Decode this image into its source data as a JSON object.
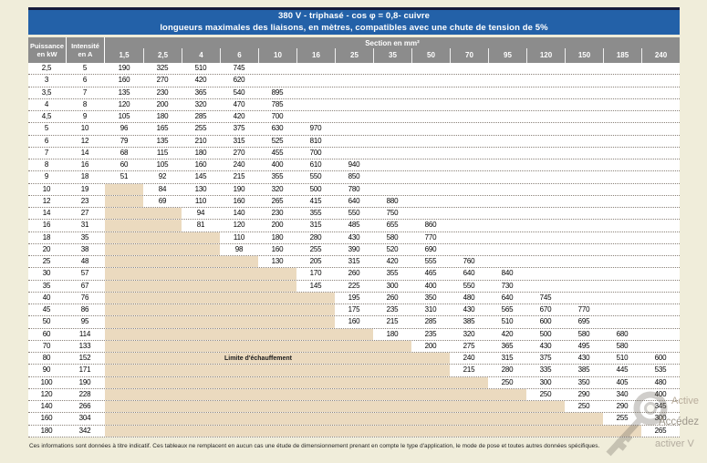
{
  "title": {
    "line1": "380 V - triphasé - cos φ  = 0,8- cuivre",
    "line2": "longueurs maximales des liaisons, en mètres, compatibles avec une chute de tension de 5%"
  },
  "header": {
    "power_line1": "Puissance",
    "power_line2": "en kW",
    "current_line1": "Intensité",
    "current_line2": "en A",
    "section_label": "Section en mm²"
  },
  "chart_data": {
    "type": "table",
    "title": "380 V - triphasé - cos φ = 0,8 - cuivre : longueurs maximales des liaisons (m) pour une chute de tension de 5%",
    "columns": [
      "1,5",
      "2,5",
      "4",
      "6",
      "10",
      "16",
      "25",
      "35",
      "50",
      "70",
      "95",
      "120",
      "150",
      "185",
      "240"
    ],
    "rows": [
      {
        "kw": "2,5",
        "a": "5",
        "beige": 0,
        "values": [
          "190",
          "325",
          "510",
          "745"
        ]
      },
      {
        "kw": "3",
        "a": "6",
        "beige": 0,
        "values": [
          "160",
          "270",
          "420",
          "620"
        ]
      },
      {
        "kw": "3,5",
        "a": "7",
        "beige": 0,
        "values": [
          "135",
          "230",
          "365",
          "540",
          "895"
        ]
      },
      {
        "kw": "4",
        "a": "8",
        "beige": 0,
        "values": [
          "120",
          "200",
          "320",
          "470",
          "785"
        ]
      },
      {
        "kw": "4,5",
        "a": "9",
        "beige": 0,
        "values": [
          "105",
          "180",
          "285",
          "420",
          "700"
        ]
      },
      {
        "kw": "5",
        "a": "10",
        "beige": 0,
        "values": [
          "96",
          "165",
          "255",
          "375",
          "630",
          "970"
        ]
      },
      {
        "kw": "6",
        "a": "12",
        "beige": 0,
        "values": [
          "79",
          "135",
          "210",
          "315",
          "525",
          "810"
        ]
      },
      {
        "kw": "7",
        "a": "14",
        "beige": 0,
        "values": [
          "68",
          "115",
          "180",
          "270",
          "455",
          "700"
        ]
      },
      {
        "kw": "8",
        "a": "16",
        "beige": 0,
        "values": [
          "60",
          "105",
          "160",
          "240",
          "400",
          "610",
          "940"
        ]
      },
      {
        "kw": "9",
        "a": "18",
        "beige": 0,
        "values": [
          "51",
          "92",
          "145",
          "215",
          "355",
          "550",
          "850"
        ]
      },
      {
        "kw": "10",
        "a": "19",
        "beige": 1,
        "values": [
          "84",
          "130",
          "190",
          "320",
          "500",
          "780"
        ]
      },
      {
        "kw": "12",
        "a": "23",
        "beige": 1,
        "values": [
          "69",
          "110",
          "160",
          "265",
          "415",
          "640",
          "880"
        ]
      },
      {
        "kw": "14",
        "a": "27",
        "beige": 2,
        "values": [
          "94",
          "140",
          "230",
          "355",
          "550",
          "750"
        ]
      },
      {
        "kw": "16",
        "a": "31",
        "beige": 2,
        "values": [
          "81",
          "120",
          "200",
          "315",
          "485",
          "655",
          "860"
        ]
      },
      {
        "kw": "18",
        "a": "35",
        "beige": 3,
        "values": [
          "110",
          "180",
          "280",
          "430",
          "580",
          "770"
        ]
      },
      {
        "kw": "20",
        "a": "38",
        "beige": 3,
        "values": [
          "98",
          "160",
          "255",
          "390",
          "520",
          "690"
        ]
      },
      {
        "kw": "25",
        "a": "48",
        "beige": 4,
        "values": [
          "130",
          "205",
          "315",
          "420",
          "555",
          "760"
        ]
      },
      {
        "kw": "30",
        "a": "57",
        "beige": 5,
        "values": [
          "170",
          "260",
          "355",
          "465",
          "640",
          "840"
        ]
      },
      {
        "kw": "35",
        "a": "67",
        "beige": 5,
        "values": [
          "145",
          "225",
          "300",
          "400",
          "550",
          "730"
        ]
      },
      {
        "kw": "40",
        "a": "76",
        "beige": 6,
        "values": [
          "195",
          "260",
          "350",
          "480",
          "640",
          "745"
        ]
      },
      {
        "kw": "45",
        "a": "86",
        "beige": 6,
        "values": [
          "175",
          "235",
          "310",
          "430",
          "565",
          "670",
          "770"
        ]
      },
      {
        "kw": "50",
        "a": "95",
        "beige": 6,
        "values": [
          "160",
          "215",
          "285",
          "385",
          "510",
          "600",
          "695"
        ]
      },
      {
        "kw": "60",
        "a": "114",
        "beige": 7,
        "values": [
          "180",
          "235",
          "320",
          "420",
          "500",
          "580",
          "680"
        ]
      },
      {
        "kw": "70",
        "a": "133",
        "beige": 8,
        "values": [
          "200",
          "275",
          "365",
          "430",
          "495",
          "580"
        ]
      },
      {
        "kw": "80",
        "a": "152",
        "beige": 9,
        "values": [
          "240",
          "315",
          "375",
          "430",
          "510",
          "600"
        ],
        "label": "Limite d'échauffement"
      },
      {
        "kw": "90",
        "a": "171",
        "beige": 9,
        "values": [
          "215",
          "280",
          "335",
          "385",
          "445",
          "535"
        ]
      },
      {
        "kw": "100",
        "a": "190",
        "beige": 10,
        "values": [
          "250",
          "300",
          "350",
          "405",
          "480"
        ]
      },
      {
        "kw": "120",
        "a": "228",
        "beige": 11,
        "values": [
          "250",
          "290",
          "340",
          "400"
        ]
      },
      {
        "kw": "140",
        "a": "266",
        "beige": 12,
        "values": [
          "250",
          "290",
          "345"
        ]
      },
      {
        "kw": "160",
        "a": "304",
        "beige": 13,
        "values": [
          "255",
          "300"
        ]
      },
      {
        "kw": "180",
        "a": "342",
        "beige": 14,
        "values": [
          "265"
        ]
      }
    ],
    "limit_zone_label": "Limite d'échauffement",
    "unit": "m"
  },
  "footnote": "Ces informations sont données à titre indicatif. Ces tableaux ne remplacent en aucun cas une étude de dimensionnement prenant en compte le type d'application, le mode de pose et toutes autres données spécifiques.",
  "watermark": {
    "line1": "Active",
    "line2": "Accédez",
    "line3": "activer V"
  },
  "colors": {
    "title_bg": "#2361a8",
    "title_border": "#161b3a",
    "header_bg": "#8c8c8c",
    "beige": "#ebdabf",
    "page_bg": "#f0edda"
  }
}
